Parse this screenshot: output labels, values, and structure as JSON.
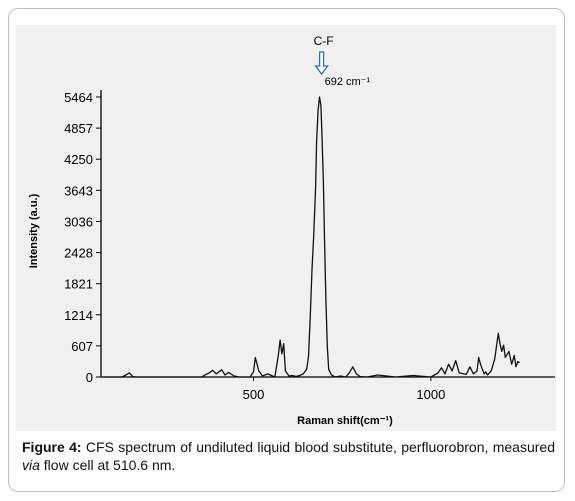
{
  "chart_data": {
    "type": "line",
    "xlabel": "Raman shift(cm⁻¹)",
    "ylabel": "Intensity (a.u.)",
    "x_ticks": [
      500,
      1000
    ],
    "y_ticks": [
      0,
      607,
      1214,
      1821,
      2428,
      3036,
      3643,
      4250,
      4857,
      5464
    ],
    "xlim": [
      70,
      1350
    ],
    "ylim": [
      0,
      5464
    ],
    "grid": false,
    "annotations": [
      {
        "label": "C-F",
        "x": 692,
        "y": 5800,
        "kind": "arrow"
      },
      {
        "label": "692 cm⁻¹",
        "x": 692,
        "y": 5700
      }
    ],
    "series": [
      {
        "x": [
          80,
          130,
          150,
          160,
          170,
          200,
          250,
          300,
          355,
          360,
          375,
          385,
          395,
          410,
          420,
          430,
          445,
          460,
          490,
          500,
          505,
          515,
          525,
          540,
          560,
          570,
          575,
          580,
          585,
          590,
          600,
          610,
          620,
          630,
          640,
          650,
          655,
          660,
          665,
          670,
          675,
          678,
          682,
          686,
          690,
          693,
          697,
          700,
          704,
          708,
          712,
          720,
          730,
          745,
          760,
          770,
          780,
          790,
          800,
          820,
          850,
          900,
          950,
          1000,
          1020,
          1030,
          1040,
          1050,
          1060,
          1070,
          1080,
          1100,
          1110,
          1120,
          1130,
          1135,
          1140,
          1150,
          1155,
          1160,
          1170,
          1180,
          1190,
          1195,
          1200,
          1205,
          1210,
          1220,
          1228,
          1235,
          1240,
          1245,
          1250
        ],
        "y": [
          0,
          0,
          80,
          5,
          0,
          0,
          0,
          0,
          0,
          30,
          80,
          130,
          60,
          140,
          40,
          90,
          20,
          0,
          0,
          100,
          380,
          120,
          20,
          60,
          0,
          420,
          720,
          450,
          650,
          120,
          20,
          30,
          10,
          30,
          60,
          150,
          400,
          1200,
          2100,
          2800,
          3700,
          4600,
          5200,
          5464,
          5300,
          4700,
          3800,
          2700,
          1500,
          600,
          150,
          40,
          0,
          20,
          0,
          80,
          200,
          60,
          10,
          0,
          40,
          0,
          30,
          0,
          80,
          180,
          60,
          250,
          120,
          320,
          80,
          50,
          200,
          60,
          120,
          380,
          250,
          60,
          100,
          40,
          120,
          350,
          850,
          650,
          500,
          620,
          380,
          500,
          250,
          420,
          200,
          300,
          280
        ]
      }
    ]
  },
  "caption": {
    "figure_label": "Figure 4:",
    "text_before_italic": " CFS spectrum of undiluted liquid blood substitute, perfluorobron, measured ",
    "italic": "via",
    "text_after_italic": " flow cell at 510.6 nm."
  }
}
